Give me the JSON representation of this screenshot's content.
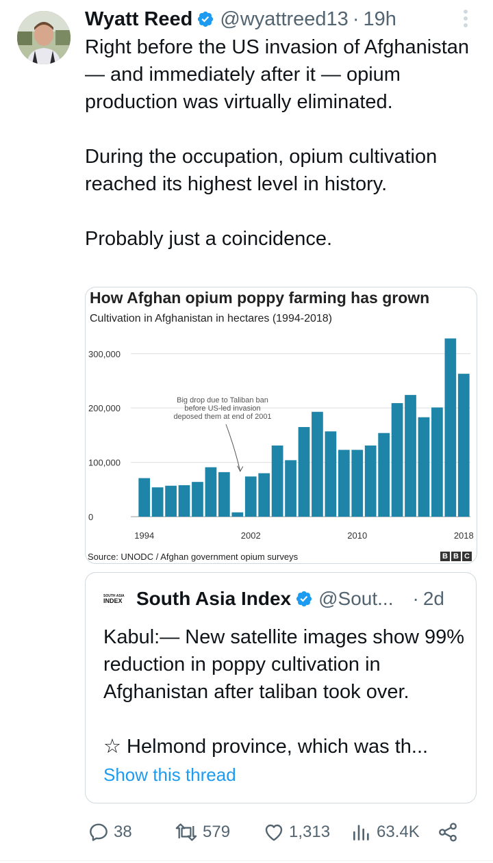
{
  "tweet": {
    "author_name": "Wyatt Reed",
    "handle": "@wyattreed13",
    "separator": "·",
    "time": "19h",
    "paragraphs": [
      "Right before the US invasion of Afghanistan — and immediately after it — opium production was virtually eliminated.",
      "During the occupation, opium cultivation reached its highest level in history.",
      "Probably just a coincidence."
    ]
  },
  "media": {
    "source": "Source: UNODC / Afghan government opium surveys",
    "brand_letters": [
      "B",
      "B",
      "C"
    ]
  },
  "chart_data": {
    "type": "bar",
    "title": "How Afghan opium poppy farming has grown",
    "subtitle": "Cultivation in Afghanistan in hectares (1994-2018)",
    "categories": [
      1994,
      1995,
      1996,
      1997,
      1998,
      1999,
      2000,
      2001,
      2002,
      2003,
      2004,
      2005,
      2006,
      2007,
      2008,
      2009,
      2010,
      2011,
      2012,
      2013,
      2014,
      2015,
      2016,
      2017,
      2018
    ],
    "values": [
      71000,
      54000,
      57000,
      58000,
      64000,
      91000,
      82000,
      8000,
      74000,
      80000,
      131000,
      104000,
      165000,
      193000,
      157000,
      123000,
      123000,
      131000,
      154000,
      209000,
      224000,
      183000,
      201000,
      328000,
      263000
    ],
    "x_tick_labels": [
      "1994",
      "2002",
      "2010",
      "2018"
    ],
    "y_tick_values": [
      0,
      100000,
      200000,
      300000
    ],
    "y_tick_labels": [
      "0",
      "100,000",
      "200,000",
      "300,000"
    ],
    "ylim": [
      0,
      340000
    ],
    "annotation": {
      "lines": [
        "Big drop due to Taliban ban",
        "before US-led invasion",
        "deposed them at end of 2001"
      ],
      "target_year": 2001
    },
    "bar_color": "#1e85a8",
    "grid": true
  },
  "quote": {
    "logo_lines": [
      "SOUTH ASIA",
      "INDEX"
    ],
    "author_name": "South Asia Index",
    "handle": "@Sout...",
    "separator": "·",
    "time": "2d",
    "paragraphs": [
      "Kabul:— New satellite images show 99% reduction in poppy cultivation in Afghanistan after taliban took over.",
      "☆ Helmond province, which was th..."
    ],
    "show_thread": "Show this thread"
  },
  "actions": {
    "replies": "38",
    "retweets": "579",
    "likes": "1,313",
    "views": "63.4K"
  },
  "colors": {
    "verified": "#1d9bf0",
    "link": "#1d9bf0",
    "muted": "#536471"
  }
}
